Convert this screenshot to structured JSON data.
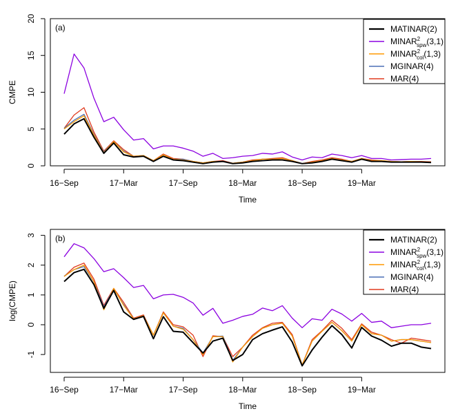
{
  "chart_data": [
    {
      "type": "line",
      "panel_label": "(a)",
      "xlabel": "Time",
      "ylabel": "CMPE",
      "ylim": [
        0,
        20
      ],
      "yticks": [
        0,
        5,
        10,
        15,
        20
      ],
      "xlim": [
        1,
        38
      ],
      "xticks": [
        {
          "x": 1,
          "label": "16-Sep"
        },
        {
          "x": 7,
          "label": "17-Mar"
        },
        {
          "x": 13,
          "label": "17-Sep"
        },
        {
          "x": 19,
          "label": "18-Mar"
        },
        {
          "x": 25,
          "label": "18-Sep"
        },
        {
          "x": 31,
          "label": "19-Mar"
        }
      ],
      "legend_position": "top-right",
      "series": [
        {
          "name": "MATINAR(2)",
          "name_main": "MATINAR(2)",
          "color": "#000000",
          "width": 2,
          "values": [
            4.3,
            5.7,
            6.4,
            3.9,
            1.7,
            3.1,
            1.5,
            1.2,
            1.3,
            0.6,
            1.3,
            0.8,
            0.7,
            0.5,
            0.3,
            0.5,
            0.6,
            0.3,
            0.4,
            0.6,
            0.7,
            0.8,
            0.8,
            0.6,
            0.3,
            0.4,
            0.6,
            0.9,
            0.7,
            0.5,
            0.9,
            0.6,
            0.6,
            0.5,
            0.5,
            0.5,
            0.5,
            0.45
          ]
        },
        {
          "name": "MINAR2spw(3,1)",
          "name_main": "MINAR",
          "name_sup": "2",
          "name_sub": "spw",
          "name_tail": "(3,1)",
          "color": "#8b00e0",
          "width": 1.3,
          "values": [
            9.8,
            15.2,
            13.3,
            9.2,
            6.0,
            6.6,
            4.9,
            3.5,
            3.7,
            2.3,
            2.7,
            2.7,
            2.4,
            2.0,
            1.3,
            1.7,
            1.0,
            1.1,
            1.3,
            1.4,
            1.7,
            1.6,
            1.9,
            1.2,
            0.8,
            1.2,
            1.1,
            1.6,
            1.4,
            1.1,
            1.4,
            1.0,
            1.0,
            0.8,
            0.85,
            0.9,
            0.9,
            1.0
          ]
        },
        {
          "name": "MINAR2col(1,3)",
          "name_main": "MINAR",
          "name_sup": "2",
          "name_sub": "col",
          "name_tail": "(1,3)",
          "color": "#ff9900",
          "width": 1.3,
          "values": [
            5.0,
            6.0,
            6.8,
            4.2,
            1.8,
            3.3,
            1.9,
            1.3,
            1.4,
            0.7,
            1.5,
            0.9,
            0.8,
            0.6,
            0.4,
            0.6,
            0.6,
            0.35,
            0.5,
            0.7,
            0.9,
            0.9,
            1.0,
            0.7,
            0.3,
            0.5,
            0.7,
            1.0,
            0.8,
            0.6,
            1.0,
            0.7,
            0.7,
            0.6,
            0.55,
            0.6,
            0.55,
            0.5
          ]
        },
        {
          "name": "MGINAR(4)",
          "name_main": "MGINAR(4)",
          "color": "#4a6fb5",
          "width": 1.3,
          "values": [
            5.1,
            6.2,
            7.0,
            4.3,
            1.9,
            3.3,
            2.0,
            1.3,
            1.4,
            0.7,
            1.5,
            0.9,
            0.9,
            0.6,
            0.4,
            0.6,
            0.6,
            0.35,
            0.5,
            0.7,
            0.9,
            0.9,
            1.0,
            0.7,
            0.3,
            0.5,
            0.7,
            1.0,
            0.8,
            0.6,
            1.0,
            0.7,
            0.7,
            0.6,
            0.55,
            0.6,
            0.55,
            0.5
          ]
        },
        {
          "name": "MAR(4)",
          "name_main": "MAR(4)",
          "color": "#e03a1e",
          "width": 1.3,
          "values": [
            5.1,
            6.9,
            7.9,
            4.6,
            2.0,
            3.4,
            2.2,
            1.3,
            1.4,
            0.7,
            1.6,
            1.0,
            0.9,
            0.6,
            0.4,
            0.6,
            0.7,
            0.35,
            0.5,
            0.8,
            0.9,
            1.0,
            1.1,
            0.7,
            0.3,
            0.6,
            0.8,
            1.1,
            0.9,
            0.6,
            1.0,
            0.8,
            0.7,
            0.6,
            0.55,
            0.6,
            0.6,
            0.55
          ]
        }
      ]
    },
    {
      "type": "line",
      "panel_label": "(b)",
      "xlabel": "Time",
      "ylabel": "log(CMPE)",
      "ylim": [
        -1.6,
        3.2
      ],
      "yticks": [
        -1,
        0,
        1,
        2,
        3
      ],
      "xlim": [
        1,
        38
      ],
      "xticks": [
        {
          "x": 1,
          "label": "16-Sep"
        },
        {
          "x": 7,
          "label": "17-Mar"
        },
        {
          "x": 13,
          "label": "17-Sep"
        },
        {
          "x": 19,
          "label": "18-Mar"
        },
        {
          "x": 25,
          "label": "18-Sep"
        },
        {
          "x": 31,
          "label": "19-Mar"
        }
      ],
      "legend_position": "top-right",
      "series": [
        {
          "name": "MATINAR(2)",
          "name_main": "MATINAR(2)",
          "color": "#000000",
          "width": 2,
          "values": [
            1.45,
            1.75,
            1.86,
            1.35,
            0.55,
            1.15,
            0.43,
            0.18,
            0.28,
            -0.47,
            0.27,
            -0.22,
            -0.25,
            -0.6,
            -0.95,
            -0.55,
            -0.45,
            -1.2,
            -1.0,
            -0.5,
            -0.3,
            -0.18,
            -0.07,
            -0.58,
            -1.38,
            -0.85,
            -0.42,
            -0.03,
            -0.33,
            -0.78,
            -0.09,
            -0.38,
            -0.52,
            -0.72,
            -0.62,
            -0.62,
            -0.75,
            -0.8
          ]
        },
        {
          "name": "MINAR2spw(3,1)",
          "name_main": "MINAR",
          "name_sup": "2",
          "name_sub": "spw",
          "name_tail": "(3,1)",
          "color": "#8b00e0",
          "width": 1.3,
          "values": [
            2.28,
            2.72,
            2.58,
            2.22,
            1.78,
            1.88,
            1.58,
            1.25,
            1.32,
            0.87,
            1.0,
            1.02,
            0.92,
            0.73,
            0.32,
            0.55,
            0.05,
            0.15,
            0.28,
            0.35,
            0.56,
            0.47,
            0.64,
            0.22,
            -0.1,
            0.2,
            0.15,
            0.52,
            0.36,
            0.12,
            0.38,
            0.08,
            0.12,
            -0.1,
            -0.05,
            0.0,
            0.0,
            0.05
          ]
        },
        {
          "name": "MINAR2col(1,3)",
          "name_main": "MINAR",
          "name_sup": "2",
          "name_sub": "col",
          "name_tail": "(1,3)",
          "color": "#ff9900",
          "width": 1.3,
          "values": [
            1.62,
            1.85,
            2.0,
            1.45,
            0.5,
            1.22,
            0.65,
            0.2,
            0.3,
            -0.35,
            0.4,
            -0.05,
            -0.15,
            -0.5,
            -1.0,
            -0.4,
            -0.4,
            -1.25,
            -0.75,
            -0.4,
            -0.12,
            0.0,
            0.05,
            -0.38,
            -1.35,
            -0.55,
            -0.22,
            0.08,
            -0.2,
            -0.55,
            0.0,
            -0.3,
            -0.35,
            -0.55,
            -0.5,
            -0.5,
            -0.55,
            -0.6
          ]
        },
        {
          "name": "MGINAR(4)",
          "name_main": "MGINAR(4)",
          "color": "#4a6fb5",
          "width": 1.3,
          "values": [
            1.63,
            1.85,
            1.95,
            1.45,
            0.6,
            1.2,
            0.68,
            0.2,
            0.3,
            -0.35,
            0.4,
            -0.05,
            -0.12,
            -0.5,
            -0.95,
            -0.4,
            -0.38,
            -1.2,
            -0.75,
            -0.4,
            -0.12,
            0.0,
            0.05,
            -0.38,
            -1.35,
            -0.55,
            -0.22,
            0.08,
            -0.2,
            -0.55,
            0.0,
            -0.3,
            -0.35,
            -0.55,
            -0.5,
            -0.5,
            -0.55,
            -0.6
          ]
        },
        {
          "name": "MAR(4)",
          "name_main": "MAR(4)",
          "color": "#e03a1e",
          "width": 1.3,
          "values": [
            1.62,
            1.93,
            2.07,
            1.53,
            0.65,
            1.22,
            0.75,
            0.22,
            0.33,
            -0.35,
            0.43,
            0.0,
            -0.07,
            -0.35,
            -1.07,
            -0.37,
            -0.4,
            -1.07,
            -0.75,
            -0.35,
            -0.1,
            0.05,
            0.08,
            -0.33,
            -1.35,
            -0.5,
            -0.2,
            0.15,
            -0.12,
            -0.5,
            0.03,
            -0.25,
            -0.35,
            -0.5,
            -0.62,
            -0.45,
            -0.5,
            -0.55
          ]
        }
      ]
    }
  ]
}
